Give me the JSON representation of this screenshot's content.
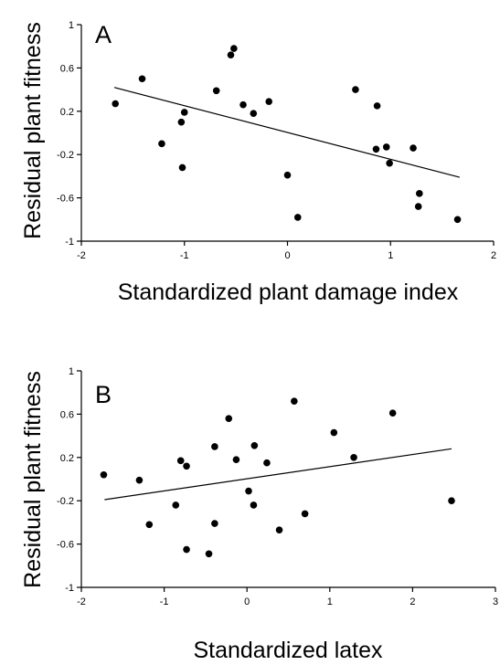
{
  "chart_data": [
    {
      "type": "scatter",
      "panel_label": "A",
      "xlabel": "Standardized plant damage index",
      "ylabel": "Residual plant fitness",
      "xlim": [
        -2,
        2
      ],
      "ylim": [
        -1,
        1
      ],
      "xticks": [
        "-2",
        "-1",
        "0",
        "1",
        "2"
      ],
      "yticks": [
        "-1",
        "-0.6",
        "-0.2",
        "0.2",
        "0.6",
        "1"
      ],
      "grid": false,
      "points": [
        {
          "x": -1.67,
          "y": 0.27
        },
        {
          "x": -1.41,
          "y": 0.5
        },
        {
          "x": -1.22,
          "y": -0.1
        },
        {
          "x": -1.03,
          "y": 0.1
        },
        {
          "x": -1.0,
          "y": 0.19
        },
        {
          "x": -1.02,
          "y": -0.32
        },
        {
          "x": -0.69,
          "y": 0.39
        },
        {
          "x": -0.55,
          "y": 0.72
        },
        {
          "x": -0.52,
          "y": 0.78
        },
        {
          "x": -0.43,
          "y": 0.26
        },
        {
          "x": -0.33,
          "y": 0.18
        },
        {
          "x": -0.18,
          "y": 0.29
        },
        {
          "x": 0.0,
          "y": -0.39
        },
        {
          "x": 0.1,
          "y": -0.78
        },
        {
          "x": 0.66,
          "y": 0.4
        },
        {
          "x": 0.86,
          "y": -0.15
        },
        {
          "x": 0.87,
          "y": 0.25
        },
        {
          "x": 0.96,
          "y": -0.13
        },
        {
          "x": 0.99,
          "y": -0.28
        },
        {
          "x": 1.22,
          "y": -0.14
        },
        {
          "x": 1.27,
          "y": -0.68
        },
        {
          "x": 1.28,
          "y": -0.56
        },
        {
          "x": 1.65,
          "y": -0.8
        }
      ],
      "trendline": {
        "x": [
          -1.68,
          1.67
        ],
        "y": [
          0.42,
          -0.41
        ]
      }
    },
    {
      "type": "scatter",
      "panel_label": "B",
      "xlabel": "Standardized latex",
      "ylabel": "Residual plant fitness",
      "xlim": [
        -2,
        3
      ],
      "ylim": [
        -1,
        1
      ],
      "xticks": [
        "-2",
        "-1",
        "0",
        "1",
        "2",
        "3"
      ],
      "yticks": [
        "-1",
        "-0.6",
        "-0.2",
        "0.2",
        "0.6",
        "1"
      ],
      "grid": false,
      "points": [
        {
          "x": -1.73,
          "y": 0.04
        },
        {
          "x": -1.3,
          "y": -0.01
        },
        {
          "x": -1.18,
          "y": -0.42
        },
        {
          "x": -0.86,
          "y": -0.24
        },
        {
          "x": -0.8,
          "y": 0.17
        },
        {
          "x": -0.73,
          "y": 0.12
        },
        {
          "x": -0.73,
          "y": -0.65
        },
        {
          "x": -0.46,
          "y": -0.69
        },
        {
          "x": -0.39,
          "y": 0.3
        },
        {
          "x": -0.39,
          "y": -0.41
        },
        {
          "x": -0.22,
          "y": 0.56
        },
        {
          "x": -0.13,
          "y": 0.18
        },
        {
          "x": 0.02,
          "y": -0.11
        },
        {
          "x": 0.08,
          "y": -0.24
        },
        {
          "x": 0.09,
          "y": 0.31
        },
        {
          "x": 0.24,
          "y": 0.15
        },
        {
          "x": 0.39,
          "y": -0.47
        },
        {
          "x": 0.57,
          "y": 0.72
        },
        {
          "x": 0.7,
          "y": -0.32
        },
        {
          "x": 1.05,
          "y": 0.43
        },
        {
          "x": 1.29,
          "y": 0.2
        },
        {
          "x": 1.76,
          "y": 0.61
        },
        {
          "x": 2.47,
          "y": -0.2
        }
      ],
      "trendline": {
        "x": [
          -1.72,
          2.47
        ],
        "y": [
          -0.19,
          0.28
        ]
      }
    }
  ]
}
